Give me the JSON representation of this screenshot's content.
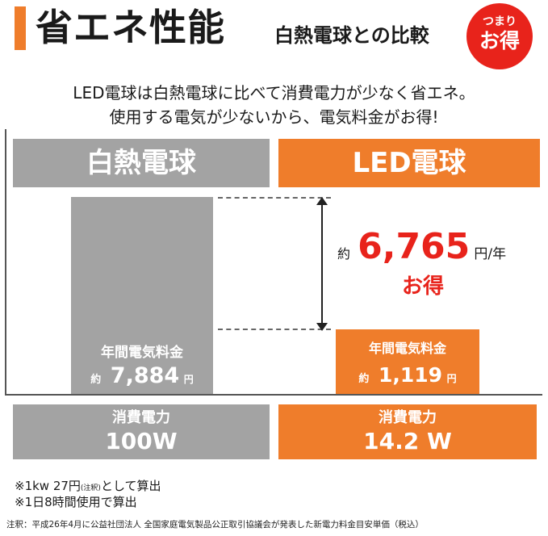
{
  "header": {
    "title": "省エネ性能",
    "subtitle": "白熱電球との比較",
    "badge_line1": "つまり",
    "badge_line2": "お得"
  },
  "intro": {
    "line1": "LED電球は白熱電球に比べて消費電力が少なく省エネ。",
    "line2": "使用する電気が少ないから、電気料金がお得!"
  },
  "incandescent": {
    "name": "白熱電球",
    "cost_label": "年間電気料金",
    "approx": "約",
    "cost_value": "7,884",
    "unit": "円",
    "power_label": "消費電力",
    "power_value": "100W"
  },
  "led": {
    "name": "LED電球",
    "cost_label": "年間電気料金",
    "approx": "約",
    "cost_value": "1,119",
    "unit": "円",
    "power_label": "消費電力",
    "power_value": "14.2 W"
  },
  "saving": {
    "approx": "約",
    "value": "6,765",
    "unit": "円/年",
    "label": "お得"
  },
  "notes": {
    "note1_prefix": "※1kw 27円",
    "note1_small": "(注釈)",
    "note1_suffix": "として算出",
    "note2": "※1日8時間使用で算出",
    "footnote": "注釈：平成26年4月に公益社団法人 全国家庭電気製品公正取引協議会が発表した新電力料金目安単価（税込）"
  },
  "chart_data": {
    "type": "bar",
    "categories": [
      "白熱電球",
      "LED電球"
    ],
    "values": [
      7884,
      1119
    ]
  },
  "colors": {
    "accent": "#ef7d2b",
    "gray": "#a3a3a3",
    "red": "#e8231b"
  }
}
